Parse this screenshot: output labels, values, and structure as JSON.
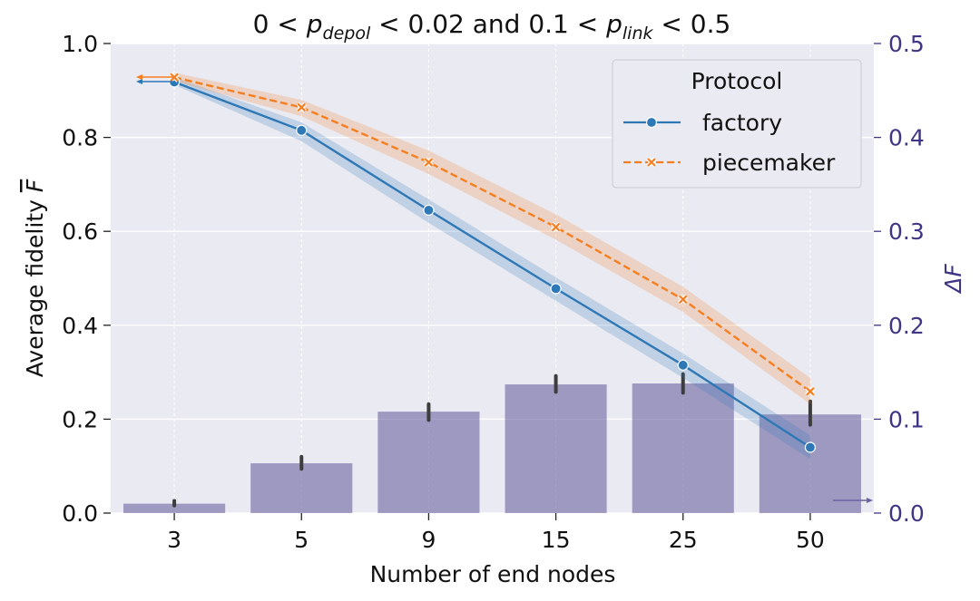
{
  "chart_data": {
    "type": "bar+line",
    "title_parts": {
      "p1": "0 < ",
      "v1": "p",
      "s1": "depol",
      "p2": " < 0.02 and 0.1 < ",
      "v2": "p",
      "s2": "link",
      "p3": " < 0.5"
    },
    "xlabel": "Number of end nodes",
    "ylabel_left": {
      "text": "Average fidelity ",
      "symbol": "F"
    },
    "ylabel_right": {
      "symbol": "ΔF"
    },
    "categories": [
      "3",
      "5",
      "9",
      "15",
      "25",
      "50"
    ],
    "ylim_left": [
      0,
      1.0
    ],
    "yticks_left": [
      "0.0",
      "0.2",
      "0.4",
      "0.6",
      "0.8",
      "1.0"
    ],
    "ylim_right": [
      0,
      0.5
    ],
    "yticks_right": [
      "0.0",
      "0.1",
      "0.2",
      "0.3",
      "0.4",
      "0.5"
    ],
    "grid": true,
    "bars": {
      "name": "ΔF",
      "axis": "right",
      "color": "#6a63a0",
      "values": [
        0.01,
        0.053,
        0.108,
        0.137,
        0.138,
        0.105
      ],
      "err_low": [
        0.008,
        0.047,
        0.099,
        0.129,
        0.128,
        0.094
      ],
      "err_high": [
        0.013,
        0.06,
        0.116,
        0.146,
        0.148,
        0.119
      ]
    },
    "series": [
      {
        "name": "factory",
        "axis": "left",
        "color": "#2e78b6",
        "marker": "circle",
        "linestyle": "solid",
        "values": [
          0.918,
          0.815,
          0.645,
          0.478,
          0.315,
          0.14
        ],
        "ci_low": [
          0.912,
          0.792,
          0.618,
          0.452,
          0.288,
          0.115
        ],
        "ci_high": [
          0.928,
          0.832,
          0.668,
          0.502,
          0.34,
          0.165
        ]
      },
      {
        "name": "piecemaker",
        "axis": "left",
        "color": "#f57f20",
        "marker": "x",
        "linestyle": "dashed",
        "values": [
          0.928,
          0.864,
          0.747,
          0.609,
          0.455,
          0.259
        ],
        "ci_low": [
          0.92,
          0.845,
          0.722,
          0.582,
          0.428,
          0.232
        ],
        "ci_high": [
          0.938,
          0.88,
          0.772,
          0.636,
          0.482,
          0.288
        ]
      }
    ],
    "legend": {
      "title": "Protocol",
      "placement": "top-right"
    },
    "axis_arrows": {
      "left": "points to left axis",
      "right": "points to right axis"
    }
  }
}
